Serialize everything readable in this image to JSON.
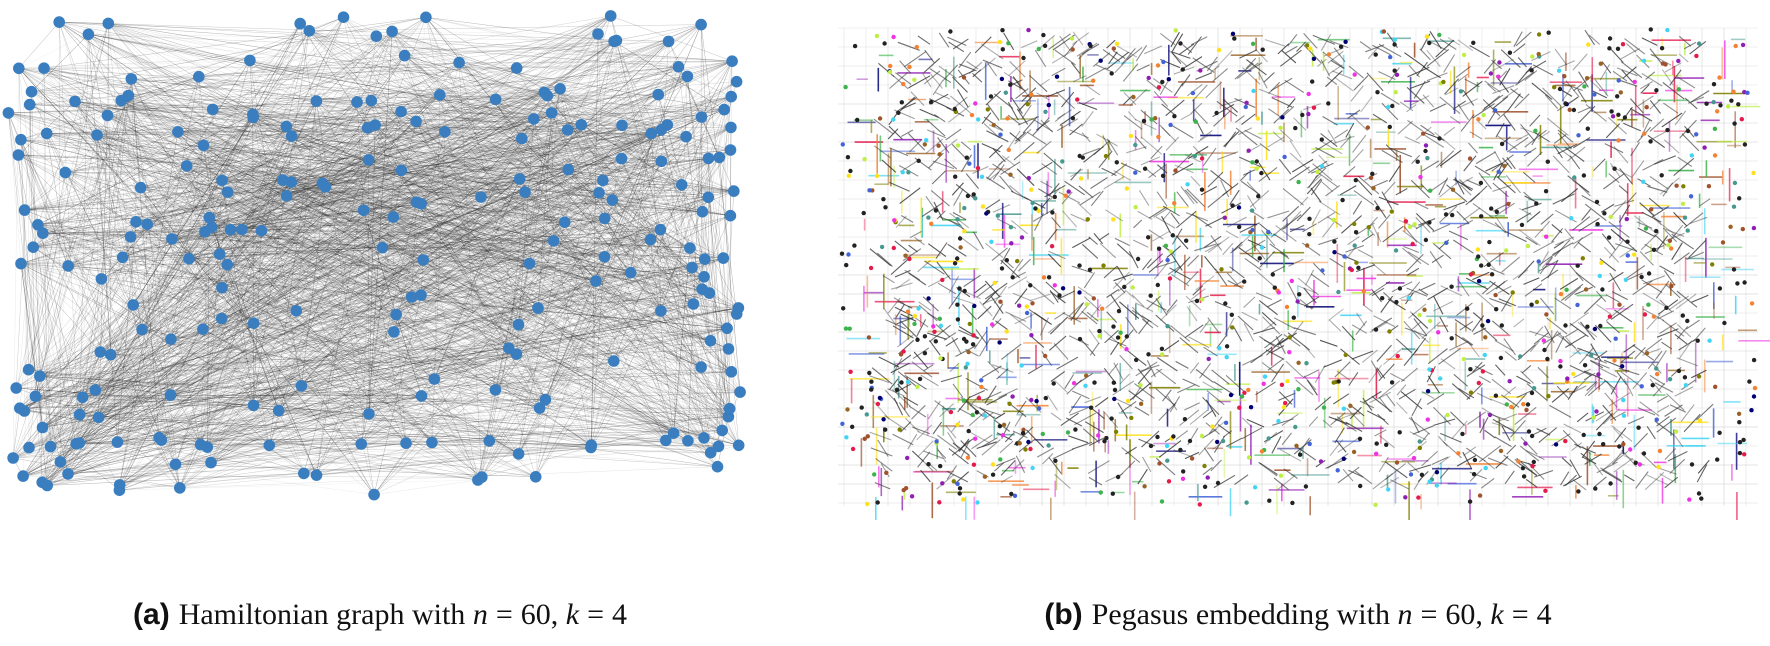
{
  "panels": [
    {
      "label": "(a)",
      "caption_text": "Hamiltonian graph with",
      "n_symbol": "n",
      "n_value": "60",
      "k_symbol": "k",
      "k_value": "4",
      "node_color": "#3a7ebf",
      "edge_color": "#222222"
    },
    {
      "label": "(b)",
      "caption_text": "Pegasus embedding with",
      "n_symbol": "n",
      "n_value": "60",
      "k_symbol": "k",
      "k_value": "4",
      "grid_color": "#cccccc",
      "edge_color": "#333333",
      "chain_colors": [
        "#e6194b",
        "#3cb44b",
        "#4363d8",
        "#f58231",
        "#911eb4",
        "#42d4f4",
        "#f032e6",
        "#bfef45",
        "#a0522d",
        "#000075",
        "#ffe119",
        "#469990",
        "#808000",
        "#9a6324"
      ]
    }
  ]
}
